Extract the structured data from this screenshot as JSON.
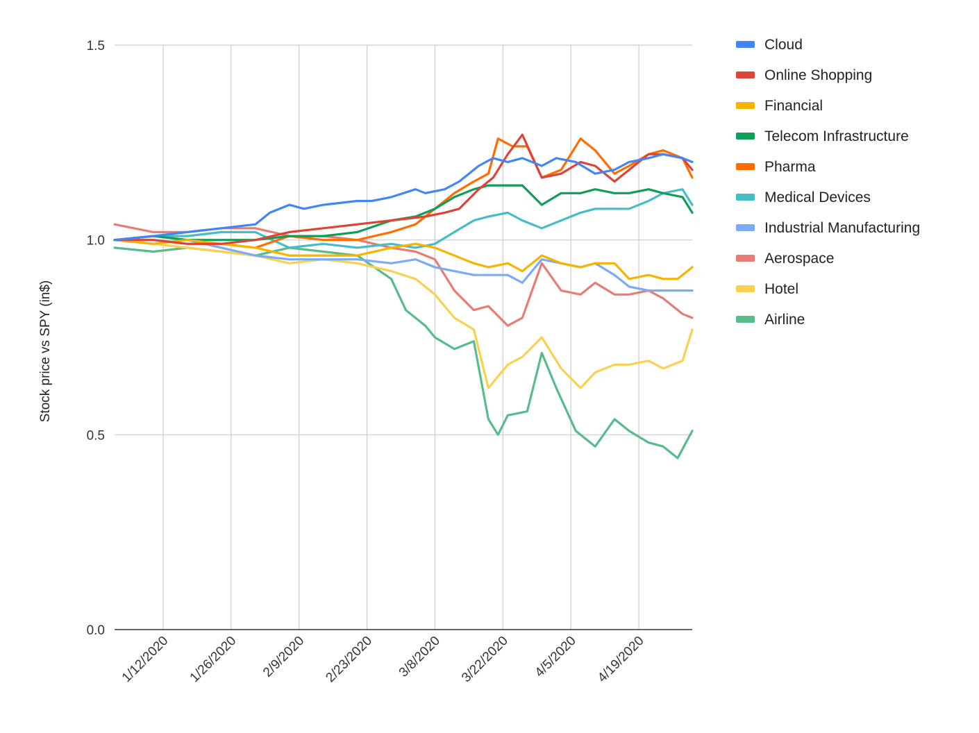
{
  "chart_data": {
    "type": "line",
    "title": "",
    "xlabel": "",
    "ylabel": "Stock price vs SPY (in$)",
    "y_ticks": [
      "0.0",
      "0.5",
      "1.0",
      "1.5"
    ],
    "ylim": [
      0,
      1.5
    ],
    "x_ticks": [
      "1/12/2020",
      "1/26/2020",
      "2/9/2020",
      "2/23/2020",
      "3/8/2020",
      "3/22/2020",
      "4/5/2020",
      "4/19/2020"
    ],
    "x_range": [
      "2020-01-02",
      "2020-04-30"
    ],
    "grid": true,
    "legend_position": "right",
    "series": [
      {
        "name": "Cloud",
        "color": "#4285F4",
        "points": [
          [
            "2020-01-02",
            1.0
          ],
          [
            "2020-01-10",
            1.01
          ],
          [
            "2020-01-17",
            1.02
          ],
          [
            "2020-01-24",
            1.03
          ],
          [
            "2020-01-31",
            1.04
          ],
          [
            "2020-02-03",
            1.07
          ],
          [
            "2020-02-07",
            1.09
          ],
          [
            "2020-02-10",
            1.08
          ],
          [
            "2020-02-14",
            1.09
          ],
          [
            "2020-02-21",
            1.1
          ],
          [
            "2020-02-24",
            1.1
          ],
          [
            "2020-02-28",
            1.11
          ],
          [
            "2020-03-04",
            1.13
          ],
          [
            "2020-03-06",
            1.12
          ],
          [
            "2020-03-10",
            1.13
          ],
          [
            "2020-03-13",
            1.15
          ],
          [
            "2020-03-17",
            1.19
          ],
          [
            "2020-03-20",
            1.21
          ],
          [
            "2020-03-23",
            1.2
          ],
          [
            "2020-03-26",
            1.21
          ],
          [
            "2020-03-30",
            1.19
          ],
          [
            "2020-04-02",
            1.21
          ],
          [
            "2020-04-06",
            1.2
          ],
          [
            "2020-04-10",
            1.17
          ],
          [
            "2020-04-14",
            1.18
          ],
          [
            "2020-04-17",
            1.2
          ],
          [
            "2020-04-21",
            1.21
          ],
          [
            "2020-04-24",
            1.22
          ],
          [
            "2020-04-28",
            1.21
          ],
          [
            "2020-04-30",
            1.2
          ]
        ]
      },
      {
        "name": "Online Shopping",
        "color": "#DB4437",
        "points": [
          [
            "2020-01-02",
            1.0
          ],
          [
            "2020-01-10",
            1.0
          ],
          [
            "2020-01-17",
            0.99
          ],
          [
            "2020-01-24",
            0.99
          ],
          [
            "2020-01-31",
            1.0
          ],
          [
            "2020-02-07",
            1.02
          ],
          [
            "2020-02-14",
            1.03
          ],
          [
            "2020-02-21",
            1.04
          ],
          [
            "2020-02-28",
            1.05
          ],
          [
            "2020-03-06",
            1.06
          ],
          [
            "2020-03-10",
            1.07
          ],
          [
            "2020-03-13",
            1.08
          ],
          [
            "2020-03-17",
            1.13
          ],
          [
            "2020-03-20",
            1.16
          ],
          [
            "2020-03-23",
            1.22
          ],
          [
            "2020-03-26",
            1.27
          ],
          [
            "2020-03-30",
            1.16
          ],
          [
            "2020-04-03",
            1.17
          ],
          [
            "2020-04-07",
            1.2
          ],
          [
            "2020-04-10",
            1.19
          ],
          [
            "2020-04-14",
            1.15
          ],
          [
            "2020-04-17",
            1.18
          ],
          [
            "2020-04-21",
            1.22
          ],
          [
            "2020-04-24",
            1.22
          ],
          [
            "2020-04-28",
            1.21
          ],
          [
            "2020-04-30",
            1.18
          ]
        ]
      },
      {
        "name": "Financial",
        "color": "#F4B400",
        "points": [
          [
            "2020-01-02",
            1.0
          ],
          [
            "2020-01-10",
            0.99
          ],
          [
            "2020-01-17",
            1.0
          ],
          [
            "2020-01-24",
            0.99
          ],
          [
            "2020-01-31",
            0.98
          ],
          [
            "2020-02-07",
            0.96
          ],
          [
            "2020-02-14",
            0.96
          ],
          [
            "2020-02-21",
            0.96
          ],
          [
            "2020-02-28",
            0.98
          ],
          [
            "2020-03-04",
            0.99
          ],
          [
            "2020-03-08",
            0.98
          ],
          [
            "2020-03-12",
            0.96
          ],
          [
            "2020-03-16",
            0.94
          ],
          [
            "2020-03-19",
            0.93
          ],
          [
            "2020-03-23",
            0.94
          ],
          [
            "2020-03-26",
            0.92
          ],
          [
            "2020-03-30",
            0.96
          ],
          [
            "2020-04-03",
            0.94
          ],
          [
            "2020-04-07",
            0.93
          ],
          [
            "2020-04-10",
            0.94
          ],
          [
            "2020-04-14",
            0.94
          ],
          [
            "2020-04-17",
            0.9
          ],
          [
            "2020-04-21",
            0.91
          ],
          [
            "2020-04-24",
            0.9
          ],
          [
            "2020-04-27",
            0.9
          ],
          [
            "2020-04-30",
            0.93
          ]
        ]
      },
      {
        "name": "Telecom Infrastructure",
        "color": "#0F9D58",
        "points": [
          [
            "2020-01-02",
            1.0
          ],
          [
            "2020-01-10",
            1.01
          ],
          [
            "2020-01-17",
            1.0
          ],
          [
            "2020-01-24",
            1.0
          ],
          [
            "2020-01-31",
            1.0
          ],
          [
            "2020-02-07",
            1.01
          ],
          [
            "2020-02-14",
            1.01
          ],
          [
            "2020-02-21",
            1.02
          ],
          [
            "2020-02-28",
            1.05
          ],
          [
            "2020-03-04",
            1.06
          ],
          [
            "2020-03-08",
            1.08
          ],
          [
            "2020-03-12",
            1.11
          ],
          [
            "2020-03-16",
            1.13
          ],
          [
            "2020-03-19",
            1.14
          ],
          [
            "2020-03-23",
            1.14
          ],
          [
            "2020-03-26",
            1.14
          ],
          [
            "2020-03-30",
            1.09
          ],
          [
            "2020-04-03",
            1.12
          ],
          [
            "2020-04-07",
            1.12
          ],
          [
            "2020-04-10",
            1.13
          ],
          [
            "2020-04-14",
            1.12
          ],
          [
            "2020-04-17",
            1.12
          ],
          [
            "2020-04-21",
            1.13
          ],
          [
            "2020-04-24",
            1.12
          ],
          [
            "2020-04-28",
            1.11
          ],
          [
            "2020-04-30",
            1.07
          ]
        ]
      },
      {
        "name": "Pharma",
        "color": "#FF6D00",
        "points": [
          [
            "2020-01-02",
            1.0
          ],
          [
            "2020-01-10",
            1.0
          ],
          [
            "2020-01-17",
            0.99
          ],
          [
            "2020-01-24",
            0.99
          ],
          [
            "2020-01-31",
            0.98
          ],
          [
            "2020-02-07",
            1.01
          ],
          [
            "2020-02-14",
            1.0
          ],
          [
            "2020-02-21",
            1.0
          ],
          [
            "2020-02-28",
            1.02
          ],
          [
            "2020-03-04",
            1.04
          ],
          [
            "2020-03-08",
            1.08
          ],
          [
            "2020-03-12",
            1.12
          ],
          [
            "2020-03-16",
            1.15
          ],
          [
            "2020-03-19",
            1.17
          ],
          [
            "2020-03-21",
            1.26
          ],
          [
            "2020-03-24",
            1.24
          ],
          [
            "2020-03-27",
            1.24
          ],
          [
            "2020-03-30",
            1.16
          ],
          [
            "2020-04-03",
            1.18
          ],
          [
            "2020-04-07",
            1.26
          ],
          [
            "2020-04-10",
            1.23
          ],
          [
            "2020-04-14",
            1.17
          ],
          [
            "2020-04-17",
            1.19
          ],
          [
            "2020-04-21",
            1.22
          ],
          [
            "2020-04-24",
            1.23
          ],
          [
            "2020-04-28",
            1.21
          ],
          [
            "2020-04-30",
            1.16
          ]
        ]
      },
      {
        "name": "Medical Devices",
        "color": "#46BDC6",
        "points": [
          [
            "2020-01-02",
            1.0
          ],
          [
            "2020-01-10",
            1.01
          ],
          [
            "2020-01-17",
            1.01
          ],
          [
            "2020-01-24",
            1.02
          ],
          [
            "2020-01-31",
            1.02
          ],
          [
            "2020-02-07",
            0.98
          ],
          [
            "2020-02-14",
            0.99
          ],
          [
            "2020-02-21",
            0.98
          ],
          [
            "2020-02-28",
            0.99
          ],
          [
            "2020-03-04",
            0.98
          ],
          [
            "2020-03-08",
            0.99
          ],
          [
            "2020-03-12",
            1.02
          ],
          [
            "2020-03-16",
            1.05
          ],
          [
            "2020-03-19",
            1.06
          ],
          [
            "2020-03-23",
            1.07
          ],
          [
            "2020-03-26",
            1.05
          ],
          [
            "2020-03-30",
            1.03
          ],
          [
            "2020-04-03",
            1.05
          ],
          [
            "2020-04-07",
            1.07
          ],
          [
            "2020-04-10",
            1.08
          ],
          [
            "2020-04-14",
            1.08
          ],
          [
            "2020-04-17",
            1.08
          ],
          [
            "2020-04-21",
            1.1
          ],
          [
            "2020-04-24",
            1.12
          ],
          [
            "2020-04-28",
            1.13
          ],
          [
            "2020-04-30",
            1.09
          ]
        ]
      },
      {
        "name": "Industrial Manufacturing",
        "color": "#7BAAF7",
        "points": [
          [
            "2020-01-02",
            1.0
          ],
          [
            "2020-01-10",
            0.99
          ],
          [
            "2020-01-17",
            1.0
          ],
          [
            "2020-01-24",
            0.98
          ],
          [
            "2020-01-31",
            0.96
          ],
          [
            "2020-02-07",
            0.95
          ],
          [
            "2020-02-14",
            0.95
          ],
          [
            "2020-02-21",
            0.95
          ],
          [
            "2020-02-28",
            0.94
          ],
          [
            "2020-03-04",
            0.95
          ],
          [
            "2020-03-08",
            0.93
          ],
          [
            "2020-03-12",
            0.92
          ],
          [
            "2020-03-16",
            0.91
          ],
          [
            "2020-03-19",
            0.91
          ],
          [
            "2020-03-23",
            0.91
          ],
          [
            "2020-03-26",
            0.89
          ],
          [
            "2020-03-30",
            0.95
          ],
          [
            "2020-04-03",
            0.94
          ],
          [
            "2020-04-07",
            0.93
          ],
          [
            "2020-04-10",
            0.94
          ],
          [
            "2020-04-14",
            0.91
          ],
          [
            "2020-04-17",
            0.88
          ],
          [
            "2020-04-21",
            0.87
          ],
          [
            "2020-04-24",
            0.87
          ],
          [
            "2020-04-28",
            0.87
          ],
          [
            "2020-04-30",
            0.87
          ]
        ]
      },
      {
        "name": "Aerospace",
        "color": "#E67C73",
        "points": [
          [
            "2020-01-02",
            1.04
          ],
          [
            "2020-01-06",
            1.03
          ],
          [
            "2020-01-10",
            1.02
          ],
          [
            "2020-01-17",
            1.02
          ],
          [
            "2020-01-24",
            1.03
          ],
          [
            "2020-01-31",
            1.03
          ],
          [
            "2020-02-07",
            1.01
          ],
          [
            "2020-02-14",
            1.01
          ],
          [
            "2020-02-21",
            1.0
          ],
          [
            "2020-02-28",
            0.98
          ],
          [
            "2020-03-04",
            0.97
          ],
          [
            "2020-03-08",
            0.95
          ],
          [
            "2020-03-12",
            0.87
          ],
          [
            "2020-03-16",
            0.82
          ],
          [
            "2020-03-19",
            0.83
          ],
          [
            "2020-03-23",
            0.78
          ],
          [
            "2020-03-26",
            0.8
          ],
          [
            "2020-03-30",
            0.94
          ],
          [
            "2020-04-03",
            0.87
          ],
          [
            "2020-04-07",
            0.86
          ],
          [
            "2020-04-10",
            0.89
          ],
          [
            "2020-04-14",
            0.86
          ],
          [
            "2020-04-17",
            0.86
          ],
          [
            "2020-04-21",
            0.87
          ],
          [
            "2020-04-24",
            0.85
          ],
          [
            "2020-04-28",
            0.81
          ],
          [
            "2020-04-30",
            0.8
          ]
        ]
      },
      {
        "name": "Hotel",
        "color": "#FCD04F",
        "points": [
          [
            "2020-01-02",
            1.0
          ],
          [
            "2020-01-10",
            0.99
          ],
          [
            "2020-01-17",
            0.98
          ],
          [
            "2020-01-24",
            0.97
          ],
          [
            "2020-01-31",
            0.96
          ],
          [
            "2020-02-07",
            0.94
          ],
          [
            "2020-02-14",
            0.95
          ],
          [
            "2020-02-21",
            0.94
          ],
          [
            "2020-02-28",
            0.92
          ],
          [
            "2020-03-04",
            0.9
          ],
          [
            "2020-03-08",
            0.86
          ],
          [
            "2020-03-12",
            0.8
          ],
          [
            "2020-03-16",
            0.77
          ],
          [
            "2020-03-19",
            0.62
          ],
          [
            "2020-03-23",
            0.68
          ],
          [
            "2020-03-26",
            0.7
          ],
          [
            "2020-03-30",
            0.75
          ],
          [
            "2020-04-03",
            0.67
          ],
          [
            "2020-04-07",
            0.62
          ],
          [
            "2020-04-10",
            0.66
          ],
          [
            "2020-04-14",
            0.68
          ],
          [
            "2020-04-17",
            0.68
          ],
          [
            "2020-04-21",
            0.69
          ],
          [
            "2020-04-24",
            0.67
          ],
          [
            "2020-04-28",
            0.69
          ],
          [
            "2020-04-30",
            0.77
          ]
        ]
      },
      {
        "name": "Airline",
        "color": "#57BB8A",
        "points": [
          [
            "2020-01-02",
            0.98
          ],
          [
            "2020-01-10",
            0.97
          ],
          [
            "2020-01-17",
            0.98
          ],
          [
            "2020-01-24",
            0.97
          ],
          [
            "2020-01-31",
            0.96
          ],
          [
            "2020-02-07",
            0.98
          ],
          [
            "2020-02-14",
            0.97
          ],
          [
            "2020-02-21",
            0.96
          ],
          [
            "2020-02-28",
            0.9
          ],
          [
            "2020-03-02",
            0.82
          ],
          [
            "2020-03-06",
            0.78
          ],
          [
            "2020-03-08",
            0.75
          ],
          [
            "2020-03-12",
            0.72
          ],
          [
            "2020-03-16",
            0.74
          ],
          [
            "2020-03-19",
            0.54
          ],
          [
            "2020-03-21",
            0.5
          ],
          [
            "2020-03-23",
            0.55
          ],
          [
            "2020-03-27",
            0.56
          ],
          [
            "2020-03-30",
            0.71
          ],
          [
            "2020-04-02",
            0.62
          ],
          [
            "2020-04-06",
            0.51
          ],
          [
            "2020-04-10",
            0.47
          ],
          [
            "2020-04-14",
            0.54
          ],
          [
            "2020-04-17",
            0.51
          ],
          [
            "2020-04-21",
            0.48
          ],
          [
            "2020-04-24",
            0.47
          ],
          [
            "2020-04-27",
            0.44
          ],
          [
            "2020-04-30",
            0.51
          ]
        ]
      }
    ]
  }
}
